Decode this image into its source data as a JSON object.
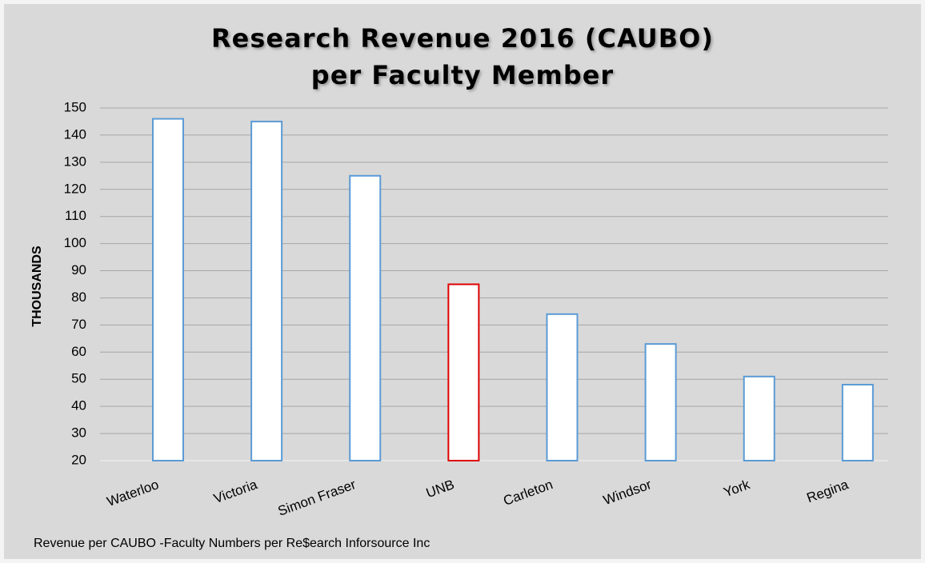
{
  "chart_data": {
    "type": "bar",
    "title": [
      "Research Revenue 2016 (CAUBO)",
      "per Faculty Member"
    ],
    "y_label": "THOUSANDS",
    "source": "Revenue per CAUBO -Faculty Numbers per Re$earch Inforsource Inc",
    "categories": [
      "Waterloo",
      "Victoria",
      "Simon Fraser",
      "UNB",
      "Carleton",
      "Windsor",
      "York",
      "Regina"
    ],
    "values": [
      146,
      145,
      125,
      85,
      74,
      63,
      51,
      48
    ],
    "colors": [
      "#5b9bd5",
      "#5b9bd5",
      "#5b9bd5",
      "#e00000",
      "#5b9bd5",
      "#5b9bd5",
      "#5b9bd5",
      "#5b9bd5"
    ],
    "ylim": [
      20,
      150
    ],
    "yticks": [
      20,
      30,
      40,
      50,
      60,
      70,
      80,
      90,
      100,
      110,
      120,
      130,
      140,
      150
    ],
    "grid": true
  }
}
